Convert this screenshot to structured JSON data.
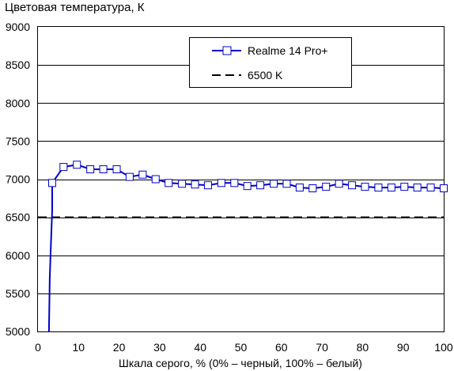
{
  "chart_data": {
    "type": "line",
    "title": "",
    "ylabel": "Цветовая температура, К",
    "xlabel": "Шкала серого, % (0% – черный, 100% – белый)",
    "xlim": [
      0,
      100
    ],
    "ylim": [
      5000,
      9000
    ],
    "x_ticks": [
      0,
      10,
      20,
      30,
      40,
      50,
      60,
      70,
      80,
      90,
      100
    ],
    "y_ticks": [
      5000,
      5500,
      6000,
      6500,
      7000,
      7500,
      8000,
      8500,
      9000
    ],
    "grid": "horizontal",
    "legend_position": "top-right",
    "series": [
      {
        "name": "Realme 14 Pro+",
        "color": "#0000cc",
        "marker": "square-open",
        "line_x": [
          2.7,
          2.9,
          3.2,
          3.5
        ],
        "line_y": [
          5000,
          5700,
          6150,
          6600
        ],
        "x": [
          3.5,
          6.3,
          9.6,
          12.9,
          16.1,
          19.4,
          22.6,
          25.8,
          29.0,
          32.2,
          35.5,
          38.7,
          41.9,
          45.2,
          48.4,
          51.6,
          54.8,
          58.1,
          61.3,
          64.5,
          67.7,
          71.0,
          74.2,
          77.4,
          80.6,
          83.9,
          87.1,
          90.3,
          93.5,
          96.8,
          100.0
        ],
        "y": [
          6950,
          7160,
          7190,
          7130,
          7130,
          7130,
          7030,
          7060,
          7000,
          6950,
          6940,
          6930,
          6920,
          6950,
          6950,
          6910,
          6920,
          6940,
          6940,
          6890,
          6880,
          6900,
          6940,
          6920,
          6900,
          6890,
          6890,
          6900,
          6890,
          6890,
          6880
        ]
      },
      {
        "name": "6500 K",
        "color": "#000000",
        "style": "dashed",
        "x": [
          0,
          100
        ],
        "y": [
          6500,
          6500
        ]
      }
    ]
  }
}
